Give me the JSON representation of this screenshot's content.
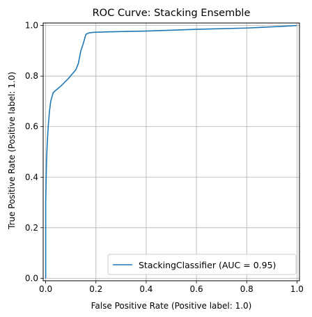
{
  "chart_data": {
    "type": "line",
    "title": "ROC Curve: Stacking Ensemble",
    "xlabel": "False Positive Rate (Positive label: 1.0)",
    "ylabel": "True Positive Rate (Positive label: 1.0)",
    "xlim": [
      -0.01,
      1.01
    ],
    "ylim": [
      -0.01,
      1.01
    ],
    "xticks": [
      "0.0",
      "0.2",
      "0.4",
      "0.6",
      "0.8",
      "1.0"
    ],
    "yticks": [
      "0.0",
      "0.2",
      "0.4",
      "0.6",
      "0.8",
      "1.0"
    ],
    "grid": true,
    "legend_position": "lower-right",
    "colors": {
      "series": "#1f77b4",
      "grid": "#b0b0b0",
      "axis": "#000000"
    },
    "series": [
      {
        "name": "StackingClassifier (AUC = 0.95)",
        "x": [
          0.0,
          0.0,
          0.003,
          0.006,
          0.01,
          0.015,
          0.02,
          0.03,
          0.06,
          0.09,
          0.12,
          0.13,
          0.14,
          0.15,
          0.16,
          0.17,
          0.18,
          0.19,
          0.25,
          0.4,
          0.6,
          0.8,
          0.95,
          1.0
        ],
        "y": [
          0.0,
          0.3,
          0.45,
          0.53,
          0.6,
          0.66,
          0.7,
          0.735,
          0.76,
          0.79,
          0.825,
          0.85,
          0.9,
          0.93,
          0.965,
          0.97,
          0.972,
          0.973,
          0.975,
          0.978,
          0.985,
          0.99,
          0.997,
          1.0
        ]
      }
    ]
  }
}
